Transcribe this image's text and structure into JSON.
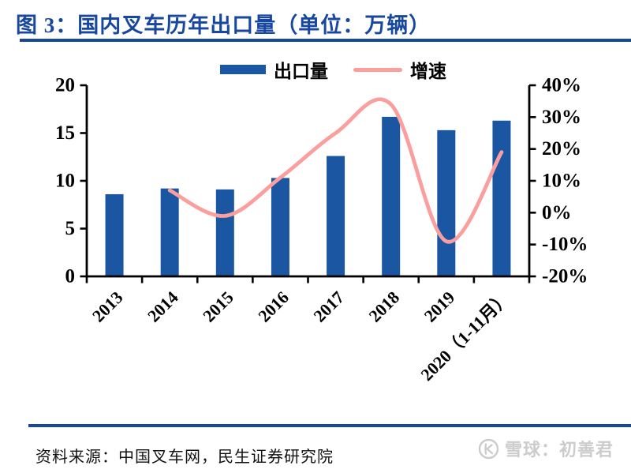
{
  "figure": {
    "title": "图 3：国内叉车历年出口量（单位：万辆）",
    "source": "资料来源：中国叉车网，民生证券研究院",
    "watermark": "雪球：初善君"
  },
  "legend": [
    {
      "label": "出口量",
      "type": "bar",
      "color": "#1A56A2"
    },
    {
      "label": "增速",
      "type": "line",
      "color": "#FA9E9E"
    }
  ],
  "colors": {
    "title_navy": "#17479E",
    "bar_blue": "#1A56A2",
    "line_pink": "#FA9E9E",
    "axis_black": "#000000",
    "watermark_gray": "#cccccc"
  },
  "chart_data": {
    "type": "bar",
    "combo": "bar+line",
    "title": "图 3：国内叉车历年出口量（单位：万辆）",
    "categories": [
      "2013",
      "2014",
      "2015",
      "2016",
      "2017",
      "2018",
      "2019",
      "2020（1-11月）"
    ],
    "series": [
      {
        "name": "出口量",
        "type": "bar",
        "axis": "left",
        "values": [
          8.6,
          9.2,
          9.1,
          10.3,
          12.6,
          16.7,
          15.3,
          16.3
        ]
      },
      {
        "name": "增速",
        "type": "line",
        "axis": "right",
        "unit": "%",
        "values": [
          null,
          7,
          -1,
          11,
          25,
          34,
          -9,
          19
        ]
      }
    ],
    "left_axis": {
      "range": [
        0,
        20
      ],
      "ticks": [
        0,
        5,
        10,
        15,
        20
      ],
      "label": "万辆"
    },
    "right_axis": {
      "range": [
        -20,
        40
      ],
      "ticks": [
        -20,
        -10,
        0,
        10,
        20,
        30,
        40
      ],
      "tick_format": "percent"
    },
    "grid": false,
    "legend_position": "top"
  }
}
